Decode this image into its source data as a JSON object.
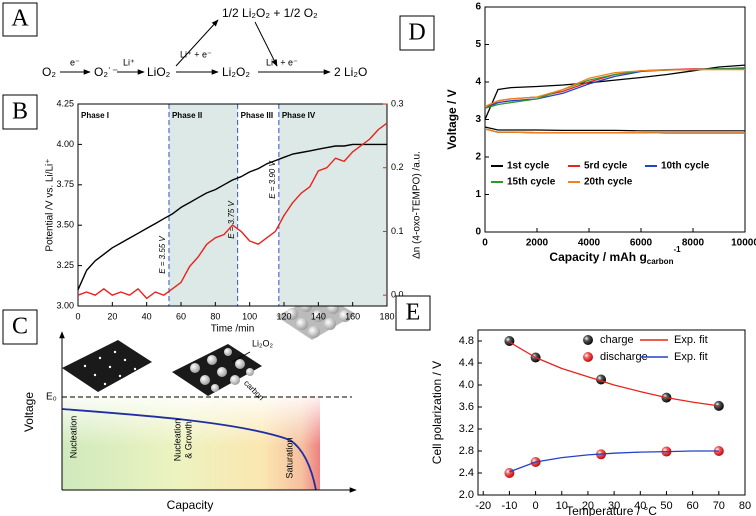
{
  "panel_a": {
    "label": "A",
    "species": [
      "O₂",
      "e⁻",
      "O₂˙⁻",
      "Li⁺",
      "LiO₂",
      "1/2 Li₂O₂ + 1/2 O₂",
      "Li⁺ + e⁻",
      "Li₂O₂",
      "Li⁺ + e⁻",
      "2 Li₂O"
    ]
  },
  "panel_c": {
    "label": "C",
    "y_label": "Voltage",
    "x_label": "Capacity",
    "e0": "E₀",
    "product": "Li₂O₂",
    "substrate": "carbon",
    "stages": [
      "Nucleation",
      "Nucleation",
      "& Growth",
      "Saturation"
    ]
  },
  "chart_data": [
    {
      "type": "line",
      "label": "B",
      "x_label": "Time /min",
      "y_label": "Potential /V vs. Li/Li⁺",
      "y2_label": "Δn (4-oxo-TEMPO) /a.u.",
      "xlim": [
        0,
        180
      ],
      "xticks": [
        0,
        20,
        40,
        60,
        80,
        100,
        120,
        140,
        160,
        180
      ],
      "ylim": [
        3.0,
        4.25
      ],
      "yticks": [
        {
          "value": 3.0,
          "label": "3.00"
        },
        3.25,
        {
          "value": 3.5,
          "label": "3.50"
        },
        3.75,
        {
          "value": 4.0,
          "label": "4.00"
        },
        4.25
      ],
      "y2lim": [
        -0.017,
        0.3
      ],
      "y2ticks": [
        {
          "value": 0,
          "label": "0.0"
        },
        0.1,
        0.2,
        0.3
      ],
      "phases": [
        "Phase I",
        "Phase II",
        "Phase III",
        "Phase IV"
      ],
      "shaded_phases": [
        1,
        3
      ],
      "shade_color": "#dde9e6",
      "markers": [
        {
          "x": 53,
          "label": "E = 3.55 V"
        },
        {
          "x": 93,
          "label": "E = 3.75 V"
        },
        {
          "x": 117,
          "label": "E = 3.90 V"
        }
      ],
      "marker_color": "#3355bb",
      "x": [
        0,
        5,
        10,
        15,
        20,
        25,
        30,
        35,
        40,
        45,
        50,
        55,
        60,
        65,
        70,
        75,
        80,
        85,
        90,
        95,
        100,
        105,
        110,
        115,
        120,
        125,
        130,
        135,
        140,
        145,
        150,
        155,
        160,
        165,
        170,
        175,
        180
      ],
      "series": [
        {
          "name": "Potential",
          "color": "#000000",
          "values": [
            3.1,
            3.22,
            3.28,
            3.32,
            3.36,
            3.39,
            3.42,
            3.45,
            3.48,
            3.51,
            3.54,
            3.57,
            3.61,
            3.64,
            3.67,
            3.7,
            3.72,
            3.75,
            3.78,
            3.8,
            3.83,
            3.85,
            3.88,
            3.9,
            3.92,
            3.94,
            3.95,
            3.96,
            3.97,
            3.98,
            3.99,
            3.99,
            4.0,
            4.0,
            4.0,
            4.0,
            4.0
          ]
        },
        {
          "name": "Δn",
          "axis": "y2",
          "color": "#e8231e",
          "values": [
            0,
            0.005,
            0,
            0.01,
            0,
            0.005,
            0,
            0.01,
            -0.005,
            0.005,
            0,
            0.01,
            0.02,
            0.045,
            0.06,
            0.08,
            0.09,
            0.095,
            0.11,
            0.1,
            0.085,
            0.08,
            0.09,
            0.1,
            0.125,
            0.145,
            0.16,
            0.17,
            0.195,
            0.2,
            0.215,
            0.21,
            0.225,
            0.235,
            0.245,
            0.26,
            0.27
          ]
        }
      ]
    },
    {
      "type": "line",
      "label": "D",
      "x_label": {
        "text": "Capacity / mAh g",
        "subscript": "carbon",
        "superscript": "-1"
      },
      "y_label": "Voltage / V",
      "xlim": [
        0,
        10000
      ],
      "xticks": [
        0,
        2000,
        4000,
        6000,
        8000,
        10000
      ],
      "ylim": [
        0,
        6
      ],
      "yticks": [
        0,
        1,
        2,
        3,
        4,
        5,
        6
      ],
      "x": [
        0,
        500,
        1000,
        2000,
        3000,
        4000,
        5000,
        6000,
        7000,
        8000,
        9000,
        10000
      ],
      "series": [
        {
          "name": "1st cycle",
          "color": "#000000",
          "values": [
            3.0,
            3.8,
            3.85,
            3.88,
            3.92,
            3.98,
            4.05,
            4.12,
            4.2,
            4.3,
            4.4,
            4.45
          ],
          "discharge": [
            2.8,
            2.72,
            2.72,
            2.72,
            2.71,
            2.71,
            2.71,
            2.7,
            2.7,
            2.7,
            2.7,
            2.7
          ]
        },
        {
          "name": "5rd cycle",
          "color": "#e8231e",
          "values": [
            3.3,
            3.5,
            3.55,
            3.6,
            3.75,
            4.0,
            4.2,
            4.3,
            4.33,
            4.35,
            4.35,
            4.38
          ],
          "discharge": [
            2.75,
            2.66,
            2.66,
            2.65,
            2.65,
            2.65,
            2.65,
            2.65,
            2.64,
            2.64,
            2.64,
            2.64
          ]
        },
        {
          "name": "10th cycle",
          "color": "#2442c8",
          "values": [
            3.3,
            3.45,
            3.5,
            3.55,
            3.7,
            3.95,
            4.15,
            4.28,
            4.32,
            4.33,
            4.35,
            4.35
          ],
          "discharge": [
            2.75,
            2.66,
            2.66,
            2.65,
            2.65,
            2.65,
            2.65,
            2.65,
            2.64,
            2.64,
            2.64,
            2.64
          ]
        },
        {
          "name": "15th cycle",
          "color": "#2a9a2a",
          "values": [
            3.3,
            3.4,
            3.45,
            3.55,
            3.8,
            4.05,
            4.2,
            4.3,
            4.32,
            4.33,
            4.35,
            4.35
          ],
          "discharge": [
            2.75,
            2.66,
            2.66,
            2.65,
            2.65,
            2.65,
            2.65,
            2.65,
            2.64,
            2.64,
            2.64,
            2.64
          ]
        },
        {
          "name": "20th cycle",
          "color": "#f08020",
          "values": [
            3.35,
            3.5,
            3.55,
            3.6,
            3.8,
            4.1,
            4.25,
            4.3,
            4.32,
            4.33,
            4.33,
            4.33
          ],
          "discharge": [
            2.75,
            2.66,
            2.66,
            2.65,
            2.65,
            2.65,
            2.65,
            2.65,
            2.64,
            2.64,
            2.64,
            2.64
          ]
        }
      ]
    },
    {
      "type": "scatter",
      "label": "E",
      "x_label": "Temperature / °C",
      "y_label": "Cell polarization / V",
      "xlim": [
        -22,
        80
      ],
      "xticks": [
        -20,
        -10,
        0,
        10,
        20,
        30,
        40,
        50,
        60,
        70,
        80
      ],
      "ylim": [
        2.0,
        5.0
      ],
      "yticks": [
        {
          "value": 2.0,
          "label": "2.0"
        },
        2.4,
        2.8,
        3.2,
        3.6,
        {
          "value": 4.0,
          "label": "4.0"
        },
        4.4,
        4.8
      ],
      "series": [
        {
          "name": "charge",
          "kind": "scatter",
          "color": "#000000",
          "x": [
            -10,
            0,
            25,
            50,
            70
          ],
          "values": [
            4.8,
            4.5,
            4.1,
            3.77,
            3.62
          ]
        },
        {
          "name": "discharge",
          "kind": "scatter",
          "color": "#e8231e",
          "x": [
            -10,
            0,
            25,
            50,
            70
          ],
          "values": [
            2.4,
            2.6,
            2.74,
            2.79,
            2.8
          ]
        },
        {
          "name": "Exp. fit",
          "kind": "line",
          "color": "#e8231e",
          "x": [
            -10,
            0,
            10,
            20,
            30,
            40,
            50,
            60,
            70
          ],
          "values": [
            4.78,
            4.5,
            4.3,
            4.15,
            4.0,
            3.88,
            3.77,
            3.69,
            3.62
          ]
        },
        {
          "name": "Exp. fit",
          "kind": "line",
          "color": "#2442c8",
          "x": [
            -10,
            0,
            10,
            20,
            30,
            40,
            50,
            60,
            70
          ],
          "values": [
            2.42,
            2.6,
            2.68,
            2.73,
            2.76,
            2.78,
            2.79,
            2.8,
            2.8
          ]
        }
      ]
    }
  ]
}
